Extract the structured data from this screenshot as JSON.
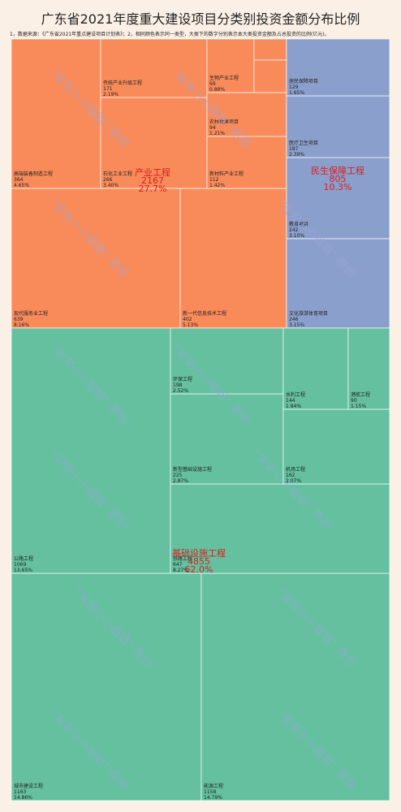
{
  "title": "广东省2021年度重大建设项目分类别投资金额分布比例",
  "note": "1，数据来源：《广东省2021年重点建设项目计划表》；2，相同颜色表示同一类型，大类下的数字分别表示本大类投资金额及占总投资的比例(亿元)。",
  "watermark": "“安安小小姐姐” 原创",
  "colors": {
    "产业工程": "#f98b5a",
    "民生保障工程": "#8b9fcc",
    "基础设施工程": "#64c09f"
  },
  "chart_data": {
    "type": "treemap",
    "title": "广东省2021年度重大建设项目分类别投资金额分布比例",
    "groups": [
      {
        "name": "产业工程",
        "value": 2167,
        "percent": "27.7%",
        "items": [
          {
            "name": "现代服务业工程",
            "value": 639,
            "percent": "8.16%"
          },
          {
            "name": "新一代信息技术工程",
            "value": 402,
            "percent": "5.13%"
          },
          {
            "name": "高端装备制造工程",
            "value": 364,
            "percent": "4.65%"
          },
          {
            "name": "石化工业工程",
            "value": 266,
            "percent": "3.40%"
          },
          {
            "name": "传统产业升级工程",
            "value": 171,
            "percent": "2.19%"
          },
          {
            "name": "新材料产业工程",
            "value": 112,
            "percent": "1.42%"
          },
          {
            "name": "农林牧渔项目",
            "value": 94,
            "percent": "1.21%"
          },
          {
            "name": "生物产业工程",
            "value": 69,
            "percent": "0.88%"
          },
          {
            "name": "",
            "value": 30,
            "percent": ""
          },
          {
            "name": "",
            "value": 20,
            "percent": ""
          }
        ]
      },
      {
        "name": "民生保障工程",
        "value": 805,
        "percent": "10.3%",
        "items": [
          {
            "name": "教育项目",
            "value": 242,
            "percent": "3.10%"
          },
          {
            "name": "文化旅游体育项目",
            "value": 246,
            "percent": "3.15%"
          },
          {
            "name": "医疗卫生项目",
            "value": 187,
            "percent": "2.39%"
          },
          {
            "name": "居民保障项目",
            "value": 129,
            "percent": "1.65%"
          }
        ]
      },
      {
        "name": "基础设施工程",
        "value": 4855,
        "percent": "62.0%",
        "items": [
          {
            "name": "城市建设工程",
            "value": 1163,
            "percent": "14.86%"
          },
          {
            "name": "能源工程",
            "value": 1158,
            "percent": "14.79%"
          },
          {
            "name": "公路工程",
            "value": 1069,
            "percent": "13.65%"
          },
          {
            "name": "铁路工程",
            "value": 647,
            "percent": "8.27%"
          },
          {
            "name": "新型基础设施工程",
            "value": 225,
            "percent": "2.87%"
          },
          {
            "name": "环保工程",
            "value": 198,
            "percent": "2.52%"
          },
          {
            "name": "机场工程",
            "value": 162,
            "percent": "2.07%"
          },
          {
            "name": "水利工程",
            "value": 144,
            "percent": "1.84%"
          },
          {
            "name": "港航工程",
            "value": 90,
            "percent": "1.15%"
          }
        ]
      }
    ]
  }
}
